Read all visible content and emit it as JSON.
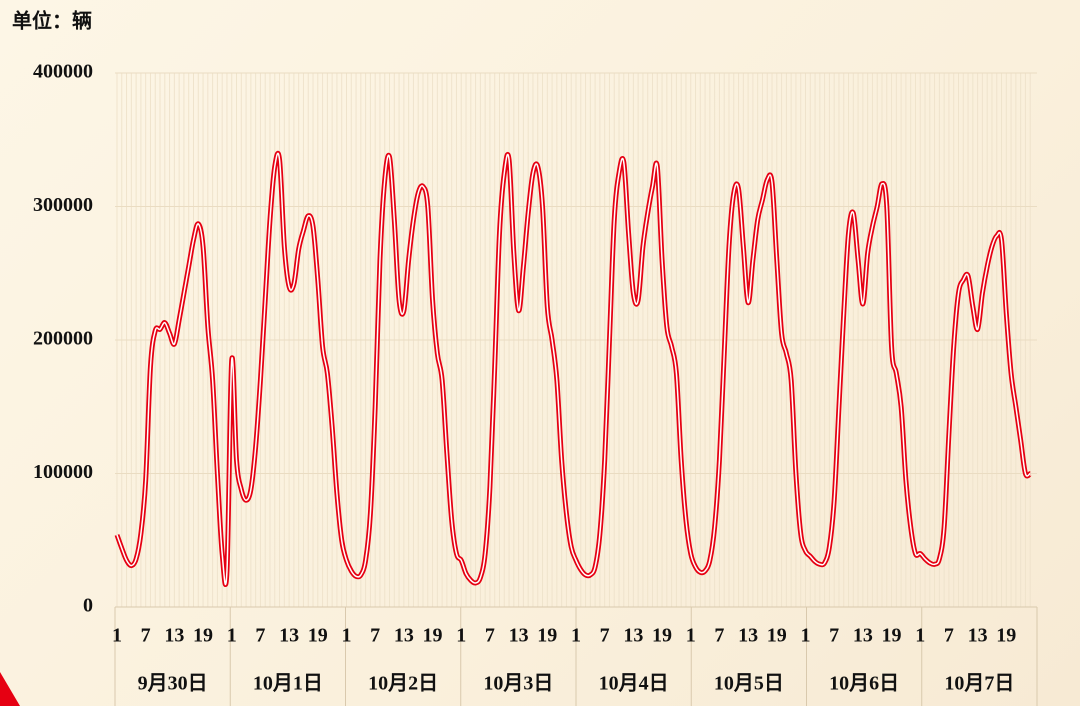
{
  "chart_data": {
    "type": "line",
    "unit_label": "单位：辆",
    "groups": [
      "9月30日",
      "10月1日",
      "10月2日",
      "10月3日",
      "10月4日",
      "10月5日",
      "10月6日",
      "10月7日"
    ],
    "categories": [
      "1",
      null,
      null,
      null,
      null,
      null,
      "7",
      null,
      null,
      null,
      null,
      null,
      "13",
      null,
      null,
      null,
      null,
      null,
      "19",
      null,
      null,
      null,
      null,
      null,
      "1",
      null,
      null,
      null,
      null,
      null,
      "7",
      null,
      null,
      null,
      null,
      null,
      "13",
      null,
      null,
      null,
      null,
      null,
      "19",
      null,
      null,
      null,
      null,
      null,
      "1",
      null,
      null,
      null,
      null,
      null,
      "7",
      null,
      null,
      null,
      null,
      null,
      "13",
      null,
      null,
      null,
      null,
      null,
      "19",
      null,
      null,
      null,
      null,
      null,
      "1",
      null,
      null,
      null,
      null,
      null,
      "7",
      null,
      null,
      null,
      null,
      null,
      "13",
      null,
      null,
      null,
      null,
      null,
      "19",
      null,
      null,
      null,
      null,
      null,
      "1",
      null,
      null,
      null,
      null,
      null,
      "7",
      null,
      null,
      null,
      null,
      null,
      "13",
      null,
      null,
      null,
      null,
      null,
      "19",
      null,
      null,
      null,
      null,
      null,
      "1",
      null,
      null,
      null,
      null,
      null,
      "7",
      null,
      null,
      null,
      null,
      null,
      "13",
      null,
      null,
      null,
      null,
      null,
      "19",
      null,
      null,
      null,
      null,
      null,
      "1",
      null,
      null,
      null,
      null,
      null,
      "7",
      null,
      null,
      null,
      null,
      null,
      "13",
      null,
      null,
      null,
      null,
      null,
      "19",
      null,
      null,
      null,
      null,
      null,
      "1",
      null,
      null,
      null,
      null,
      null,
      "7",
      null,
      null,
      null,
      null,
      null,
      "13",
      null,
      null,
      null,
      null,
      null,
      "19",
      null,
      null,
      null,
      null,
      null
    ],
    "values": [
      54000,
      44000,
      35000,
      31000,
      36000,
      55000,
      95000,
      180000,
      207000,
      208000,
      213000,
      205000,
      197000,
      215000,
      235000,
      255000,
      275000,
      287000,
      270000,
      210000,
      170000,
      100000,
      40000,
      27000,
      185000,
      110000,
      88000,
      80000,
      88000,
      120000,
      170000,
      230000,
      290000,
      330000,
      335000,
      270000,
      240000,
      242000,
      268000,
      282000,
      293000,
      285000,
      245000,
      195000,
      175000,
      135000,
      85000,
      50000,
      35000,
      27000,
      23000,
      24000,
      35000,
      70000,
      150000,
      260000,
      320000,
      337000,
      290000,
      230000,
      222000,
      260000,
      290000,
      310000,
      315000,
      300000,
      230000,
      190000,
      170000,
      115000,
      65000,
      40000,
      35000,
      25000,
      20000,
      18000,
      22000,
      40000,
      90000,
      180000,
      280000,
      325000,
      335000,
      265000,
      222000,
      255000,
      295000,
      325000,
      330000,
      300000,
      225000,
      200000,
      170000,
      110000,
      70000,
      45000,
      35000,
      28000,
      24000,
      24000,
      30000,
      55000,
      110000,
      200000,
      290000,
      325000,
      333000,
      280000,
      235000,
      230000,
      270000,
      295000,
      315000,
      330000,
      260000,
      210000,
      195000,
      175000,
      110000,
      65000,
      40000,
      30000,
      26000,
      27000,
      35000,
      60000,
      110000,
      190000,
      270000,
      310000,
      313000,
      270000,
      228000,
      260000,
      290000,
      305000,
      320000,
      318000,
      260000,
      205000,
      190000,
      170000,
      100000,
      55000,
      42000,
      38000,
      34000,
      32000,
      33000,
      45000,
      80000,
      150000,
      220000,
      280000,
      295000,
      260000,
      227000,
      265000,
      285000,
      300000,
      317000,
      300000,
      195000,
      175000,
      150000,
      95000,
      60000,
      40000,
      40000,
      36000,
      33000,
      32000,
      36000,
      60000,
      130000,
      195000,
      235000,
      245000,
      248000,
      225000,
      208000,
      235000,
      255000,
      270000,
      278000,
      275000,
      220000,
      175000,
      150000,
      125000,
      100000,
      100000
    ],
    "color": "#e60012",
    "ylim": [
      0,
      400000
    ],
    "yticks": [
      0,
      100000,
      200000,
      300000,
      400000
    ],
    "grid": true
  }
}
